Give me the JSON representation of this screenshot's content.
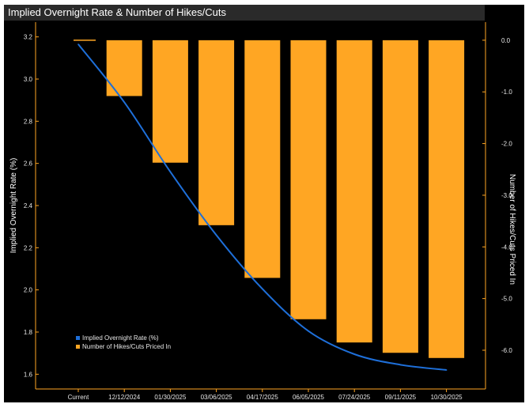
{
  "chart_data": {
    "type": "bar+line",
    "title": "Implied Overnight Rate & Number of Hikes/Cuts",
    "categories": [
      "Current",
      "12/12/2024",
      "01/30/2025",
      "03/06/2025",
      "04/17/2025",
      "06/05/2025",
      "07/24/2025",
      "09/11/2025",
      "10/30/2025"
    ],
    "series": [
      {
        "name": "Implied Overnight Rate (%)",
        "type": "line",
        "axis": "left",
        "color": "#1e6fd9",
        "values": [
          3.165,
          2.89,
          2.56,
          2.26,
          2.005,
          1.805,
          1.695,
          1.645,
          1.62
        ]
      },
      {
        "name": "Number of Hikes/Cuts Priced In",
        "type": "bar",
        "axis": "right",
        "color": "#ffa623",
        "values": [
          0.0,
          -1.08,
          -2.37,
          -3.58,
          -4.6,
          -5.4,
          -5.85,
          -6.05,
          -6.15
        ]
      }
    ],
    "ylabel_left": "Implied Overnight Rate (%)",
    "ylabel_right": "Number of Hikes/Cuts Priced In",
    "ylim_left": [
      1.53,
      3.27
    ],
    "ylim_right": [
      -6.75,
      0.35
    ],
    "yticks_left": [
      "3.2",
      "3.0",
      "2.8",
      "2.6",
      "2.4",
      "2.2",
      "2.0",
      "1.8",
      "1.6"
    ],
    "yticks_right": [
      "0.0",
      "-1.0",
      "-2.0",
      "-3.0",
      "-4.0",
      "-5.0",
      "-6.0"
    ],
    "grid": false,
    "legend_position": "bottom-left",
    "background": "#000000",
    "axis_color": "#ffa623"
  }
}
